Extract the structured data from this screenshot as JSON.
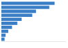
{
  "chart_data": {
    "type": "bar",
    "orientation": "horizontal",
    "categories": [
      null,
      null,
      null,
      null,
      null,
      null,
      null,
      null,
      null,
      null
    ],
    "values": [
      100,
      90,
      65,
      58,
      38,
      30,
      20,
      13,
      8,
      6
    ],
    "color": "#3A7EC6",
    "xlim": [
      0,
      120
    ],
    "grid": false,
    "tick_labels": false
  }
}
